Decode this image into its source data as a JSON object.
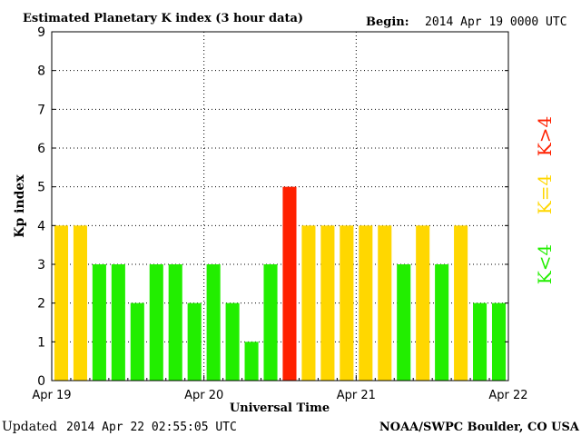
{
  "header": {
    "title": "Estimated Planetary K index (3 hour data)",
    "begin_label": "Begin:",
    "begin_value": "2014 Apr 19 0000 UTC"
  },
  "footer": {
    "updated_label": "Updated",
    "updated_value": "2014 Apr 22 02:55:05 UTC",
    "credit": "NOAA/SWPC Boulder, CO USA"
  },
  "legend": {
    "items": [
      {
        "label": "K>4",
        "color": "#ff2000"
      },
      {
        "label": "K=4",
        "color": "#ffd700"
      },
      {
        "label": "K<4",
        "color": "#22ee00"
      }
    ]
  },
  "colors": {
    "below_4": "#22ee00",
    "equal_4": "#ffd700",
    "above_4": "#ff2000"
  },
  "chart_data": {
    "type": "bar",
    "title": "Estimated Planetary K index (3 hour data)",
    "xlabel": "Universal Time",
    "ylabel": "Kp index",
    "ylim": [
      0,
      9
    ],
    "yticks": [
      "0",
      "1",
      "2",
      "3",
      "4",
      "5",
      "6",
      "7",
      "8",
      "9"
    ],
    "xticks": [
      "Apr 19",
      "Apr 20",
      "Apr 21",
      "Apr 22"
    ],
    "grid": true,
    "categories": [
      "Apr 19 00-03",
      "Apr 19 03-06",
      "Apr 19 06-09",
      "Apr 19 09-12",
      "Apr 19 12-15",
      "Apr 19 15-18",
      "Apr 19 18-21",
      "Apr 19 21-24",
      "Apr 20 00-03",
      "Apr 20 03-06",
      "Apr 20 06-09",
      "Apr 20 09-12",
      "Apr 20 12-15",
      "Apr 20 15-18",
      "Apr 20 18-21",
      "Apr 20 21-24",
      "Apr 21 00-03",
      "Apr 21 03-06",
      "Apr 21 06-09",
      "Apr 21 09-12",
      "Apr 21 12-15",
      "Apr 21 15-18",
      "Apr 21 18-21",
      "Apr 21 21-24"
    ],
    "values": [
      4,
      4,
      3,
      3,
      2,
      3,
      3,
      2,
      3,
      2,
      1,
      3,
      5,
      4,
      4,
      4,
      4,
      4,
      3,
      4,
      3,
      4,
      2,
      2
    ]
  }
}
